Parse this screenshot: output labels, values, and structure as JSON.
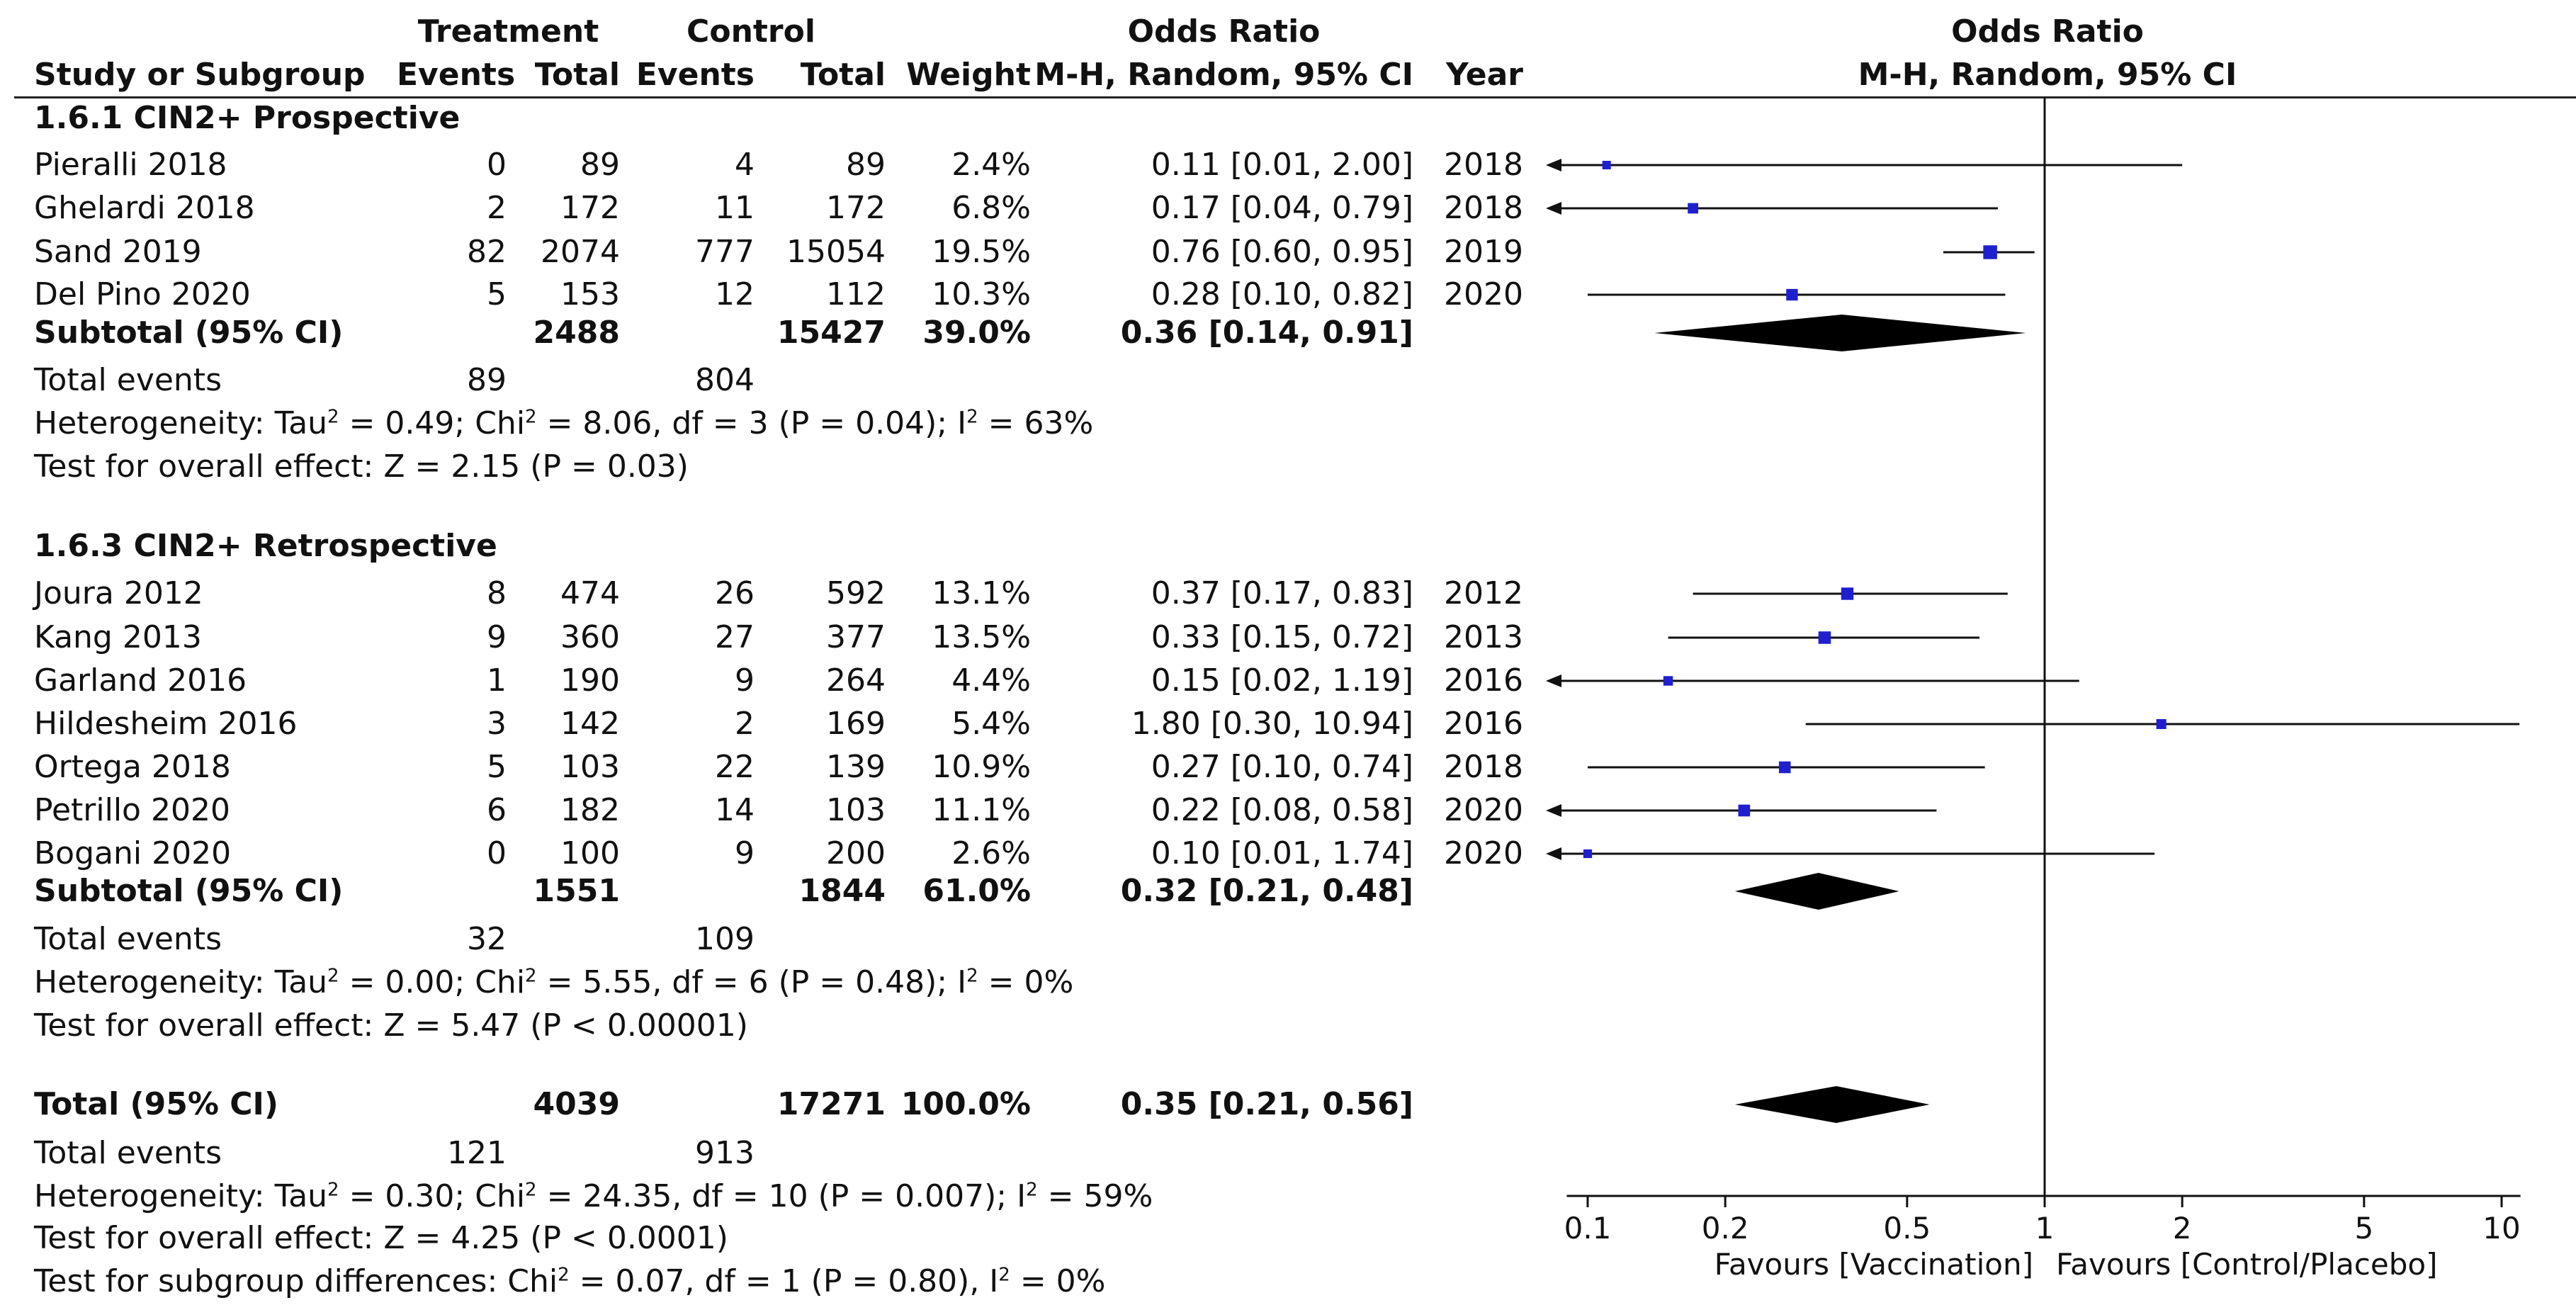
{
  "header": {
    "treatment": "Treatment",
    "control": "Control",
    "odds_ratio_table": "Odds Ratio",
    "odds_ratio_plot": "Odds Ratio",
    "study_or_subgroup": "Study or Subgroup",
    "events_t": "Events",
    "total_t": "Total",
    "events_c": "Events",
    "total_c": "Total",
    "weight": "Weight",
    "method_table": "M-H, Random, 95% CI",
    "year": "Year",
    "method_plot": "M-H, Random, 95% CI"
  },
  "subgroups": [
    {
      "title": "1.6.1 CIN2+ Prospective",
      "studies": [
        {
          "name": "Pieralli 2018",
          "events_t": "0",
          "total_t": "89",
          "events_c": "4",
          "total_c": "89",
          "weight": "2.4%",
          "ci": "0.11 [0.01, 2.00]",
          "year": "2018"
        },
        {
          "name": "Ghelardi 2018",
          "events_t": "2",
          "total_t": "172",
          "events_c": "11",
          "total_c": "172",
          "weight": "6.8%",
          "ci": "0.17 [0.04, 0.79]",
          "year": "2018"
        },
        {
          "name": "Sand 2019",
          "events_t": "82",
          "total_t": "2074",
          "events_c": "777",
          "total_c": "15054",
          "weight": "19.5%",
          "ci": "0.76 [0.60, 0.95]",
          "year": "2019"
        },
        {
          "name": "Del Pino 2020",
          "events_t": "5",
          "total_t": "153",
          "events_c": "12",
          "total_c": "112",
          "weight": "10.3%",
          "ci": "0.28 [0.10, 0.82]",
          "year": "2020"
        }
      ],
      "subtotal": {
        "label": "Subtotal (95% CI)",
        "total_t": "2488",
        "total_c": "15427",
        "weight": "39.0%",
        "ci": "0.36 [0.14, 0.91]"
      },
      "total_events": {
        "label": "Total events",
        "events_t": "89",
        "events_c": "804"
      },
      "heterogeneity": {
        "pre": "Heterogeneity: Tau",
        "mid1": " = 0.49; Chi",
        "mid2": " = 8.06, df = 3 (P = 0.04); I",
        "post": " = 63%"
      },
      "overall": "Test for overall effect: Z = 2.15 (P = 0.03)"
    },
    {
      "title": "1.6.3 CIN2+ Retrospective",
      "studies": [
        {
          "name": "Joura 2012",
          "events_t": "8",
          "total_t": "474",
          "events_c": "26",
          "total_c": "592",
          "weight": "13.1%",
          "ci": "0.37 [0.17, 0.83]",
          "year": "2012"
        },
        {
          "name": "Kang 2013",
          "events_t": "9",
          "total_t": "360",
          "events_c": "27",
          "total_c": "377",
          "weight": "13.5%",
          "ci": "0.33 [0.15, 0.72]",
          "year": "2013"
        },
        {
          "name": "Garland 2016",
          "events_t": "1",
          "total_t": "190",
          "events_c": "9",
          "total_c": "264",
          "weight": "4.4%",
          "ci": "0.15 [0.02, 1.19]",
          "year": "2016"
        },
        {
          "name": "Hildesheim 2016",
          "events_t": "3",
          "total_t": "142",
          "events_c": "2",
          "total_c": "169",
          "weight": "5.4%",
          "ci": "1.80 [0.30, 10.94]",
          "year": "2016"
        },
        {
          "name": "Ortega 2018",
          "events_t": "5",
          "total_t": "103",
          "events_c": "22",
          "total_c": "139",
          "weight": "10.9%",
          "ci": "0.27 [0.10, 0.74]",
          "year": "2018"
        },
        {
          "name": "Petrillo 2020",
          "events_t": "6",
          "total_t": "182",
          "events_c": "14",
          "total_c": "103",
          "weight": "11.1%",
          "ci": "0.22 [0.08, 0.58]",
          "year": "2020"
        },
        {
          "name": "Bogani 2020",
          "events_t": "0",
          "total_t": "100",
          "events_c": "9",
          "total_c": "200",
          "weight": "2.6%",
          "ci": "0.10 [0.01, 1.74]",
          "year": "2020"
        }
      ],
      "subtotal": {
        "label": "Subtotal (95% CI)",
        "total_t": "1551",
        "total_c": "1844",
        "weight": "61.0%",
        "ci": "0.32 [0.21, 0.48]"
      },
      "total_events": {
        "label": "Total events",
        "events_t": "32",
        "events_c": "109"
      },
      "heterogeneity": {
        "pre": "Heterogeneity: Tau",
        "mid1": " = 0.00; Chi",
        "mid2": " = 5.55, df = 6 (P = 0.48); I",
        "post": " = 0%"
      },
      "overall": "Test for overall effect: Z = 5.47 (P < 0.00001)"
    }
  ],
  "total": {
    "label": "Total (95% CI)",
    "total_t": "4039",
    "total_c": "17271",
    "weight": "100.0%",
    "ci": "0.35 [0.21, 0.56]",
    "total_events": {
      "label": "Total events",
      "events_t": "121",
      "events_c": "913"
    },
    "heterogeneity": {
      "pre": "Heterogeneity: Tau",
      "mid1": " = 0.30; Chi",
      "mid2": " = 24.35, df = 10 (P = 0.007); I",
      "post": " = 59%"
    },
    "overall": "Test for overall effect: Z = 4.25 (P < 0.0001)",
    "subgroup_diff": {
      "pre": "Test for subgroup differences: Chi",
      "mid": " = 0.07, df = 1 (P = 0.80), I",
      "post": " = 0%"
    }
  },
  "superscript": "2",
  "colors": {
    "marker": "#1f1fd0",
    "diamond": "#000000",
    "line": "#111111"
  },
  "chart_data": {
    "type": "forest",
    "title": "Odds Ratio",
    "subtitle": "M-H, Random, 95% CI",
    "x_scale": "log",
    "xlim": [
      0.09,
      11
    ],
    "ticks": [
      0.1,
      0.2,
      0.5,
      1,
      2,
      5,
      10
    ],
    "tick_labels": [
      "0.1",
      "0.2",
      "0.5",
      "1",
      "2",
      "5",
      "10"
    ],
    "reference_line": 1,
    "favours_left": "Favours [Vaccination]",
    "favours_right": "Favours [Control/Placebo]",
    "studies": [
      {
        "name": "Pieralli 2018",
        "or": 0.11,
        "lo": 0.01,
        "hi": 2.0,
        "weight": 2.4
      },
      {
        "name": "Ghelardi 2018",
        "or": 0.17,
        "lo": 0.04,
        "hi": 0.79,
        "weight": 6.8
      },
      {
        "name": "Sand 2019",
        "or": 0.76,
        "lo": 0.6,
        "hi": 0.95,
        "weight": 19.5
      },
      {
        "name": "Del Pino 2020",
        "or": 0.28,
        "lo": 0.1,
        "hi": 0.82,
        "weight": 10.3
      },
      {
        "name": "Joura 2012",
        "or": 0.37,
        "lo": 0.17,
        "hi": 0.83,
        "weight": 13.1
      },
      {
        "name": "Kang 2013",
        "or": 0.33,
        "lo": 0.15,
        "hi": 0.72,
        "weight": 13.5
      },
      {
        "name": "Garland 2016",
        "or": 0.15,
        "lo": 0.02,
        "hi": 1.19,
        "weight": 4.4
      },
      {
        "name": "Hildesheim 2016",
        "or": 1.8,
        "lo": 0.3,
        "hi": 10.94,
        "weight": 5.4
      },
      {
        "name": "Ortega 2018",
        "or": 0.27,
        "lo": 0.1,
        "hi": 0.74,
        "weight": 10.9
      },
      {
        "name": "Petrillo 2020",
        "or": 0.22,
        "lo": 0.08,
        "hi": 0.58,
        "weight": 11.1
      },
      {
        "name": "Bogani 2020",
        "or": 0.1,
        "lo": 0.01,
        "hi": 1.74,
        "weight": 2.6
      }
    ],
    "pooled": [
      {
        "name": "Subtotal 1.6.1 CIN2+ Prospective",
        "or": 0.36,
        "lo": 0.14,
        "hi": 0.91
      },
      {
        "name": "Subtotal 1.6.3 CIN2+ Retrospective",
        "or": 0.32,
        "lo": 0.21,
        "hi": 0.48
      },
      {
        "name": "Total",
        "or": 0.35,
        "lo": 0.21,
        "hi": 0.56
      }
    ]
  }
}
